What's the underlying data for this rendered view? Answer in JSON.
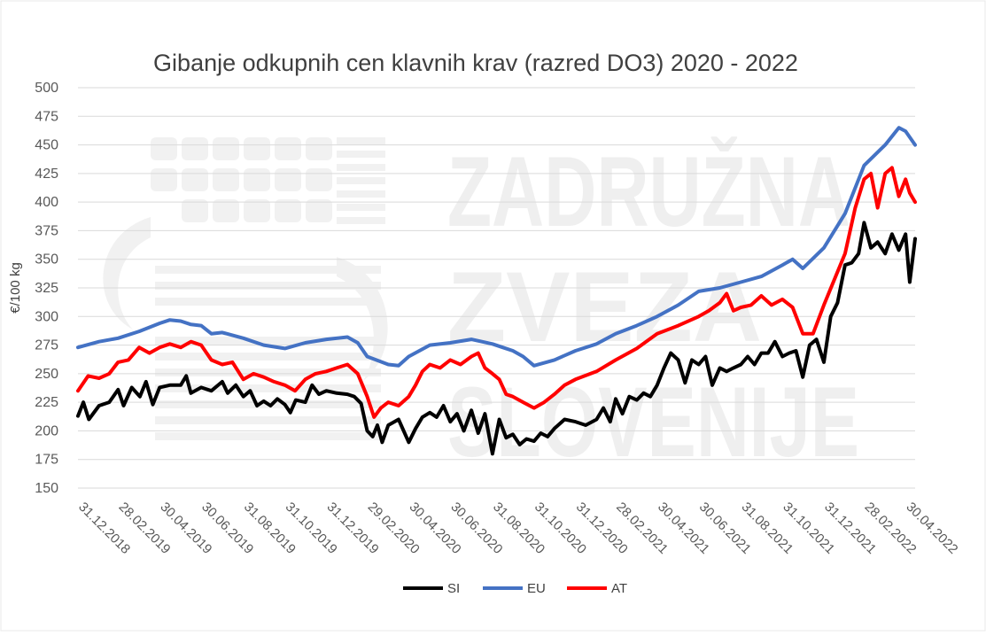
{
  "chart_data": {
    "type": "line",
    "title": "Gibanje odkupnih cen klavnih krav (razred DO3) 2020 - 2022",
    "xlabel": "",
    "ylabel": "€/100 kg",
    "ylim": [
      150,
      500
    ],
    "yticks": [
      150,
      175,
      200,
      225,
      250,
      275,
      300,
      325,
      350,
      375,
      400,
      425,
      450,
      475,
      500
    ],
    "xlim": [
      "2018-12-31",
      "2022-05-14"
    ],
    "x_tick_labels": [
      "31.12.2018",
      "28.02.2019",
      "30.04.2019",
      "30.06.2019",
      "31.08.2019",
      "31.10.2019",
      "31.12.2019",
      "29.02.2020",
      "30.04.2020",
      "30.06.2020",
      "31.08.2020",
      "31.10.2020",
      "31.12.2020",
      "28.02.2021",
      "30.04.2021",
      "30.06.2021",
      "31.08.2021",
      "31.10.2021",
      "31.12.2021",
      "28.02.2022",
      "30.04.2022"
    ],
    "grid": true,
    "legend_position": "bottom",
    "watermark": "ZADRUŽNA ZVEZA SLOVENIJE",
    "series": [
      {
        "name": "SI",
        "color": "#000000",
        "points": [
          [
            "2018-12-31",
            213
          ],
          [
            "2019-01-08",
            225
          ],
          [
            "2019-01-16",
            210
          ],
          [
            "2019-01-31",
            222
          ],
          [
            "2019-02-15",
            225
          ],
          [
            "2019-02-28",
            236
          ],
          [
            "2019-03-08",
            222
          ],
          [
            "2019-03-20",
            238
          ],
          [
            "2019-04-01",
            230
          ],
          [
            "2019-04-10",
            243
          ],
          [
            "2019-04-20",
            223
          ],
          [
            "2019-04-30",
            238
          ],
          [
            "2019-05-15",
            240
          ],
          [
            "2019-05-31",
            240
          ],
          [
            "2019-06-08",
            248
          ],
          [
            "2019-06-15",
            233
          ],
          [
            "2019-06-30",
            238
          ],
          [
            "2019-07-15",
            235
          ],
          [
            "2019-07-31",
            243
          ],
          [
            "2019-08-08",
            233
          ],
          [
            "2019-08-20",
            240
          ],
          [
            "2019-08-31",
            230
          ],
          [
            "2019-09-10",
            235
          ],
          [
            "2019-09-20",
            222
          ],
          [
            "2019-09-30",
            226
          ],
          [
            "2019-10-10",
            222
          ],
          [
            "2019-10-20",
            228
          ],
          [
            "2019-10-31",
            223
          ],
          [
            "2019-11-08",
            216
          ],
          [
            "2019-11-16",
            227
          ],
          [
            "2019-11-30",
            225
          ],
          [
            "2019-12-10",
            240
          ],
          [
            "2019-12-20",
            232
          ],
          [
            "2019-12-31",
            235
          ],
          [
            "2020-01-15",
            233
          ],
          [
            "2020-01-31",
            232
          ],
          [
            "2020-02-10",
            230
          ],
          [
            "2020-02-20",
            224
          ],
          [
            "2020-02-29",
            200
          ],
          [
            "2020-03-08",
            195
          ],
          [
            "2020-03-15",
            205
          ],
          [
            "2020-03-22",
            190
          ],
          [
            "2020-03-31",
            205
          ],
          [
            "2020-04-15",
            210
          ],
          [
            "2020-04-30",
            190
          ],
          [
            "2020-05-10",
            202
          ],
          [
            "2020-05-20",
            212
          ],
          [
            "2020-05-31",
            216
          ],
          [
            "2020-06-10",
            212
          ],
          [
            "2020-06-20",
            222
          ],
          [
            "2020-06-30",
            208
          ],
          [
            "2020-07-10",
            215
          ],
          [
            "2020-07-20",
            200
          ],
          [
            "2020-07-31",
            218
          ],
          [
            "2020-08-10",
            198
          ],
          [
            "2020-08-20",
            215
          ],
          [
            "2020-08-31",
            180
          ],
          [
            "2020-09-10",
            210
          ],
          [
            "2020-09-20",
            194
          ],
          [
            "2020-09-30",
            197
          ],
          [
            "2020-10-10",
            188
          ],
          [
            "2020-10-20",
            193
          ],
          [
            "2020-10-31",
            191
          ],
          [
            "2020-11-10",
            198
          ],
          [
            "2020-11-20",
            195
          ],
          [
            "2020-11-30",
            202
          ],
          [
            "2020-12-15",
            210
          ],
          [
            "2020-12-31",
            208
          ],
          [
            "2021-01-15",
            205
          ],
          [
            "2021-01-31",
            210
          ],
          [
            "2021-02-10",
            220
          ],
          [
            "2021-02-20",
            208
          ],
          [
            "2021-02-28",
            228
          ],
          [
            "2021-03-10",
            215
          ],
          [
            "2021-03-20",
            230
          ],
          [
            "2021-03-31",
            227
          ],
          [
            "2021-04-10",
            233
          ],
          [
            "2021-04-20",
            230
          ],
          [
            "2021-04-30",
            240
          ],
          [
            "2021-05-10",
            255
          ],
          [
            "2021-05-20",
            268
          ],
          [
            "2021-05-31",
            262
          ],
          [
            "2021-06-10",
            242
          ],
          [
            "2021-06-20",
            262
          ],
          [
            "2021-06-30",
            258
          ],
          [
            "2021-07-10",
            265
          ],
          [
            "2021-07-20",
            240
          ],
          [
            "2021-07-31",
            255
          ],
          [
            "2021-08-10",
            252
          ],
          [
            "2021-08-20",
            255
          ],
          [
            "2021-08-31",
            258
          ],
          [
            "2021-09-10",
            265
          ],
          [
            "2021-09-20",
            258
          ],
          [
            "2021-09-30",
            268
          ],
          [
            "2021-10-10",
            268
          ],
          [
            "2021-10-20",
            278
          ],
          [
            "2021-10-31",
            265
          ],
          [
            "2021-11-10",
            268
          ],
          [
            "2021-11-20",
            270
          ],
          [
            "2021-11-30",
            247
          ],
          [
            "2021-12-10",
            275
          ],
          [
            "2021-12-20",
            280
          ],
          [
            "2021-12-31",
            260
          ],
          [
            "2022-01-10",
            300
          ],
          [
            "2022-01-20",
            312
          ],
          [
            "2022-01-31",
            345
          ],
          [
            "2022-02-10",
            347
          ],
          [
            "2022-02-20",
            355
          ],
          [
            "2022-02-28",
            382
          ],
          [
            "2022-03-10",
            360
          ],
          [
            "2022-03-20",
            365
          ],
          [
            "2022-03-31",
            355
          ],
          [
            "2022-04-10",
            372
          ],
          [
            "2022-04-20",
            358
          ],
          [
            "2022-04-30",
            372
          ],
          [
            "2022-05-06",
            330
          ],
          [
            "2022-05-14",
            368
          ]
        ]
      },
      {
        "name": "EU",
        "color": "#4472c4",
        "points": [
          [
            "2018-12-31",
            273
          ],
          [
            "2019-01-31",
            278
          ],
          [
            "2019-02-28",
            281
          ],
          [
            "2019-03-31",
            287
          ],
          [
            "2019-04-30",
            294
          ],
          [
            "2019-05-15",
            297
          ],
          [
            "2019-05-31",
            296
          ],
          [
            "2019-06-15",
            293
          ],
          [
            "2019-06-30",
            292
          ],
          [
            "2019-07-15",
            285
          ],
          [
            "2019-07-31",
            286
          ],
          [
            "2019-08-31",
            281
          ],
          [
            "2019-09-30",
            275
          ],
          [
            "2019-10-31",
            272
          ],
          [
            "2019-11-30",
            277
          ],
          [
            "2019-12-31",
            280
          ],
          [
            "2020-01-31",
            282
          ],
          [
            "2020-02-15",
            277
          ],
          [
            "2020-02-29",
            265
          ],
          [
            "2020-03-31",
            258
          ],
          [
            "2020-04-15",
            257
          ],
          [
            "2020-04-30",
            265
          ],
          [
            "2020-05-31",
            275
          ],
          [
            "2020-06-30",
            277
          ],
          [
            "2020-07-31",
            280
          ],
          [
            "2020-08-31",
            276
          ],
          [
            "2020-09-15",
            273
          ],
          [
            "2020-09-30",
            270
          ],
          [
            "2020-10-15",
            265
          ],
          [
            "2020-10-31",
            257
          ],
          [
            "2020-11-30",
            262
          ],
          [
            "2020-12-31",
            270
          ],
          [
            "2021-01-31",
            276
          ],
          [
            "2021-02-28",
            285
          ],
          [
            "2021-03-31",
            292
          ],
          [
            "2021-04-30",
            300
          ],
          [
            "2021-05-31",
            310
          ],
          [
            "2021-06-30",
            322
          ],
          [
            "2021-07-31",
            325
          ],
          [
            "2021-08-31",
            330
          ],
          [
            "2021-09-30",
            335
          ],
          [
            "2021-10-31",
            345
          ],
          [
            "2021-11-15",
            350
          ],
          [
            "2021-11-30",
            342
          ],
          [
            "2021-12-31",
            360
          ],
          [
            "2022-01-31",
            390
          ],
          [
            "2022-02-28",
            432
          ],
          [
            "2022-03-31",
            450
          ],
          [
            "2022-04-20",
            465
          ],
          [
            "2022-04-30",
            462
          ],
          [
            "2022-05-14",
            450
          ]
        ]
      },
      {
        "name": "AT",
        "color": "#ff0000",
        "points": [
          [
            "2018-12-31",
            235
          ],
          [
            "2019-01-15",
            248
          ],
          [
            "2019-01-31",
            246
          ],
          [
            "2019-02-15",
            250
          ],
          [
            "2019-02-28",
            260
          ],
          [
            "2019-03-15",
            262
          ],
          [
            "2019-03-31",
            273
          ],
          [
            "2019-04-15",
            268
          ],
          [
            "2019-04-30",
            273
          ],
          [
            "2019-05-15",
            276
          ],
          [
            "2019-05-31",
            273
          ],
          [
            "2019-06-15",
            278
          ],
          [
            "2019-06-30",
            275
          ],
          [
            "2019-07-15",
            262
          ],
          [
            "2019-07-31",
            258
          ],
          [
            "2019-08-15",
            260
          ],
          [
            "2019-08-31",
            245
          ],
          [
            "2019-09-15",
            250
          ],
          [
            "2019-09-30",
            247
          ],
          [
            "2019-10-15",
            243
          ],
          [
            "2019-10-31",
            240
          ],
          [
            "2019-11-15",
            235
          ],
          [
            "2019-11-30",
            245
          ],
          [
            "2019-12-15",
            250
          ],
          [
            "2019-12-31",
            252
          ],
          [
            "2020-01-15",
            255
          ],
          [
            "2020-01-31",
            258
          ],
          [
            "2020-02-15",
            250
          ],
          [
            "2020-02-29",
            230
          ],
          [
            "2020-03-10",
            212
          ],
          [
            "2020-03-20",
            220
          ],
          [
            "2020-03-31",
            225
          ],
          [
            "2020-04-15",
            222
          ],
          [
            "2020-04-30",
            230
          ],
          [
            "2020-05-10",
            240
          ],
          [
            "2020-05-20",
            252
          ],
          [
            "2020-05-31",
            258
          ],
          [
            "2020-06-15",
            255
          ],
          [
            "2020-06-30",
            262
          ],
          [
            "2020-07-15",
            258
          ],
          [
            "2020-07-31",
            265
          ],
          [
            "2020-08-10",
            268
          ],
          [
            "2020-08-20",
            255
          ],
          [
            "2020-08-31",
            250
          ],
          [
            "2020-09-10",
            245
          ],
          [
            "2020-09-20",
            232
          ],
          [
            "2020-09-30",
            230
          ],
          [
            "2020-10-15",
            225
          ],
          [
            "2020-10-31",
            220
          ],
          [
            "2020-11-15",
            225
          ],
          [
            "2020-11-30",
            232
          ],
          [
            "2020-12-15",
            240
          ],
          [
            "2020-12-31",
            245
          ],
          [
            "2021-01-31",
            252
          ],
          [
            "2021-02-28",
            262
          ],
          [
            "2021-03-31",
            272
          ],
          [
            "2021-04-30",
            285
          ],
          [
            "2021-05-31",
            292
          ],
          [
            "2021-06-30",
            300
          ],
          [
            "2021-07-15",
            305
          ],
          [
            "2021-07-31",
            312
          ],
          [
            "2021-08-10",
            320
          ],
          [
            "2021-08-20",
            305
          ],
          [
            "2021-08-31",
            308
          ],
          [
            "2021-09-15",
            310
          ],
          [
            "2021-09-30",
            318
          ],
          [
            "2021-10-15",
            310
          ],
          [
            "2021-10-31",
            315
          ],
          [
            "2021-11-15",
            308
          ],
          [
            "2021-11-30",
            285
          ],
          [
            "2021-12-15",
            285
          ],
          [
            "2021-12-31",
            310
          ],
          [
            "2022-01-31",
            355
          ],
          [
            "2022-02-15",
            395
          ],
          [
            "2022-02-28",
            420
          ],
          [
            "2022-03-10",
            425
          ],
          [
            "2022-03-20",
            395
          ],
          [
            "2022-03-31",
            425
          ],
          [
            "2022-04-10",
            430
          ],
          [
            "2022-04-20",
            405
          ],
          [
            "2022-04-30",
            420
          ],
          [
            "2022-05-06",
            408
          ],
          [
            "2022-05-14",
            400
          ]
        ]
      }
    ]
  }
}
